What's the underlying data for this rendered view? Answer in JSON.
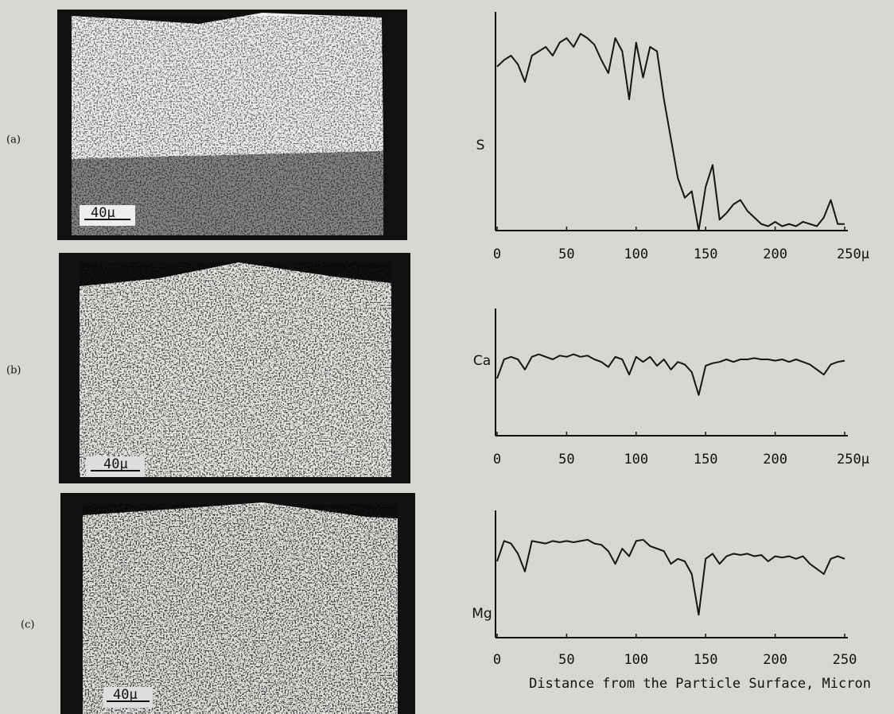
{
  "panels": [
    {
      "label": "(a)",
      "scale_bar": "40μ"
    },
    {
      "label": "(b)",
      "scale_bar": "40μ"
    },
    {
      "label": "(c)",
      "scale_bar": "40μ"
    }
  ],
  "chart_data": [
    {
      "type": "line",
      "ylabel": "S",
      "xlim": [
        0,
        250
      ],
      "ylim": [
        0,
        100
      ],
      "xticks": [
        0,
        50,
        100,
        150,
        200,
        {
          "value": 250,
          "label": "250μ"
        }
      ],
      "x": [
        0,
        5,
        10,
        15,
        20,
        25,
        30,
        35,
        40,
        45,
        50,
        55,
        60,
        65,
        70,
        75,
        80,
        85,
        90,
        95,
        100,
        105,
        110,
        115,
        120,
        125,
        130,
        135,
        140,
        145,
        150,
        155,
        160,
        165,
        170,
        175,
        180,
        185,
        190,
        195,
        200,
        205,
        210,
        215,
        220,
        225,
        230,
        235,
        240,
        245,
        250
      ],
      "series": [
        {
          "color": "#151515",
          "values": [
            75,
            78,
            80,
            76,
            68,
            80,
            82,
            84,
            80,
            86,
            88,
            84,
            90,
            88,
            85,
            78,
            72,
            88,
            82,
            60,
            86,
            70,
            84,
            82,
            60,
            42,
            24,
            15,
            18,
            0,
            20,
            30,
            5,
            8,
            12,
            14,
            9,
            6,
            3,
            2,
            4,
            2,
            3,
            2,
            4,
            3,
            2,
            6,
            14,
            3,
            3
          ]
        }
      ]
    },
    {
      "type": "line",
      "ylabel": "Ca",
      "xlim": [
        0,
        250
      ],
      "ylim": [
        0,
        100
      ],
      "xticks": [
        0,
        50,
        100,
        150,
        200,
        {
          "value": 250,
          "label": "250μ"
        }
      ],
      "x": [
        0,
        5,
        10,
        15,
        20,
        25,
        30,
        35,
        40,
        45,
        50,
        55,
        60,
        65,
        70,
        75,
        80,
        85,
        90,
        95,
        100,
        105,
        110,
        115,
        120,
        125,
        130,
        135,
        140,
        145,
        150,
        155,
        160,
        165,
        170,
        175,
        180,
        185,
        190,
        195,
        200,
        205,
        210,
        215,
        220,
        225,
        230,
        235,
        240,
        245,
        250
      ],
      "series": [
        {
          "color": "#151515",
          "values": [
            45,
            60,
            62,
            60,
            52,
            62,
            64,
            62,
            60,
            63,
            62,
            64,
            62,
            63,
            60,
            58,
            54,
            62,
            60,
            48,
            62,
            58,
            62,
            55,
            60,
            52,
            58,
            56,
            50,
            32,
            55,
            57,
            58,
            60,
            58,
            60,
            60,
            61,
            60,
            60,
            59,
            60,
            58,
            60,
            58,
            56,
            52,
            48,
            56,
            58,
            59
          ]
        }
      ]
    },
    {
      "type": "line",
      "ylabel": "Mg",
      "xlabel": "Distance from the Particle Surface, Micron",
      "xlim": [
        0,
        250
      ],
      "ylim": [
        0,
        100
      ],
      "xticks": [
        0,
        50,
        100,
        150,
        200,
        250
      ],
      "x": [
        0,
        5,
        10,
        15,
        20,
        25,
        30,
        35,
        40,
        45,
        50,
        55,
        60,
        65,
        70,
        75,
        80,
        85,
        90,
        95,
        100,
        105,
        110,
        115,
        120,
        125,
        130,
        135,
        140,
        145,
        150,
        155,
        160,
        165,
        170,
        175,
        180,
        185,
        190,
        195,
        200,
        205,
        210,
        215,
        220,
        225,
        230,
        235,
        240,
        245,
        250
      ],
      "series": [
        {
          "color": "#151515",
          "values": [
            60,
            76,
            74,
            66,
            52,
            76,
            75,
            74,
            76,
            75,
            76,
            75,
            76,
            77,
            74,
            73,
            68,
            58,
            70,
            64,
            76,
            77,
            72,
            70,
            68,
            58,
            62,
            60,
            50,
            18,
            62,
            66,
            58,
            64,
            66,
            65,
            66,
            64,
            65,
            60,
            64,
            63,
            64,
            62,
            64,
            58,
            54,
            50,
            62,
            64,
            62
          ]
        }
      ]
    }
  ]
}
